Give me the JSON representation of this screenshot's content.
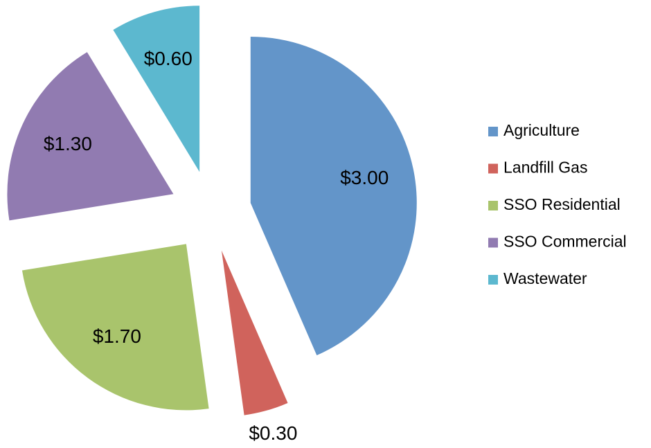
{
  "chart_data": {
    "type": "pie",
    "categories": [
      "Agriculture",
      "Landfill Gas",
      "SSO Residential",
      "SSO Commercial",
      "Wastewater"
    ],
    "values": [
      3.0,
      0.3,
      1.7,
      1.3,
      0.6
    ],
    "value_labels": [
      "$3.00",
      "$0.30",
      "$1.70",
      "$1.30",
      "$0.60"
    ],
    "colors": [
      "#6395c9",
      "#d0635c",
      "#a9c46c",
      "#917bb1",
      "#5cb8cf"
    ],
    "legend": "right"
  }
}
